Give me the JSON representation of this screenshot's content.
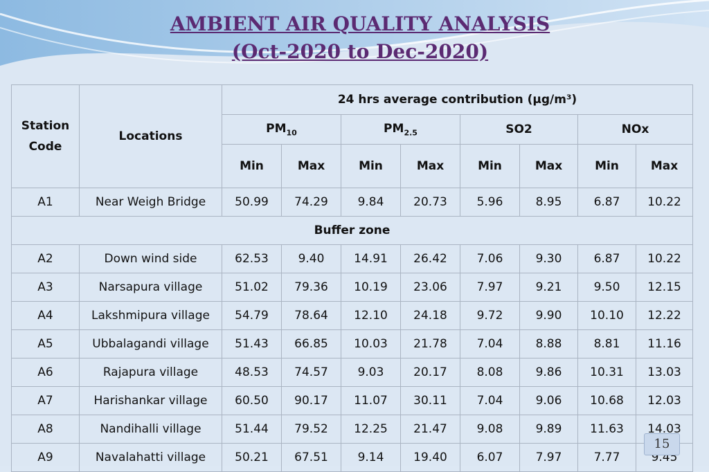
{
  "title": {
    "line1": "AMBIENT AIR QUALITY ANALYSIS",
    "line2": "(Oct-2020 to Dec-2020)"
  },
  "table": {
    "station_code_header_1": "Station",
    "station_code_header_2": "Code",
    "locations_header": "Locations",
    "group_header": "24 hrs average contribution (µg/m³)",
    "pollutants": {
      "pm10_base": "PM",
      "pm10_sub": "10",
      "pm25_base": "PM",
      "pm25_sub": "2.5",
      "so2": "SO2",
      "nox": "NOx"
    },
    "min_label": "Min",
    "max_label": "Max",
    "buffer_zone_label": "Buffer zone",
    "rows": [
      {
        "code": "A1",
        "location": "Near Weigh Bridge",
        "values": [
          "50.99",
          "74.29",
          "9.84",
          "20.73",
          "5.96",
          "8.95",
          "6.87",
          "10.22"
        ]
      },
      {
        "code": "A2",
        "location": "Down wind side",
        "values": [
          "62.53",
          "9.40",
          "14.91",
          "26.42",
          "7.06",
          "9.30",
          "6.87",
          "10.22"
        ]
      },
      {
        "code": "A3",
        "location": "Narsapura village",
        "values": [
          "51.02",
          "79.36",
          "10.19",
          "23.06",
          "7.97",
          "9.21",
          "9.50",
          "12.15"
        ]
      },
      {
        "code": "A4",
        "location": "Lakshmipura village",
        "values": [
          "54.79",
          "78.64",
          "12.10",
          "24.18",
          "9.72",
          "9.90",
          "10.10",
          "12.22"
        ]
      },
      {
        "code": "A5",
        "location": "Ubbalagandi village",
        "values": [
          "51.43",
          "66.85",
          "10.03",
          "21.78",
          "7.04",
          "8.88",
          "8.81",
          "11.16"
        ]
      },
      {
        "code": "A6",
        "location": "Rajapura village",
        "values": [
          "48.53",
          "74.57",
          "9.03",
          "20.17",
          "8.08",
          "9.86",
          "10.31",
          "13.03"
        ]
      },
      {
        "code": "A7",
        "location": "Harishankar village",
        "values": [
          "60.50",
          "90.17",
          "11.07",
          "30.11",
          "7.04",
          "9.06",
          "10.68",
          "12.03"
        ]
      },
      {
        "code": "A8",
        "location": "Nandihalli village",
        "values": [
          "51.44",
          "79.52",
          "12.25",
          "21.47",
          "9.08",
          "9.89",
          "11.63",
          "14.03"
        ]
      },
      {
        "code": "A9",
        "location": "Navalahatti village",
        "values": [
          "50.21",
          "67.51",
          "9.14",
          "19.40",
          "6.07",
          "7.97",
          "7.77",
          "9.45"
        ]
      }
    ]
  },
  "page_number": "15"
}
